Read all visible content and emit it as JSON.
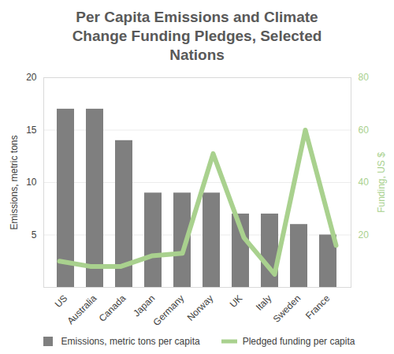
{
  "chart_data": {
    "type": "bar",
    "title": "Per Capita Emissions and Climate Change Funding Pledges, Selected Nations",
    "categories": [
      "US",
      "Australia",
      "Canada",
      "Japan",
      "Germany",
      "Norway",
      "UK",
      "Italy",
      "Sweden",
      "France"
    ],
    "series": [
      {
        "name": "Emissions, metric tons per capita",
        "type": "bar",
        "color": "#7f7f7f",
        "values": [
          17,
          17,
          14,
          9,
          9,
          9,
          7,
          7,
          6,
          5
        ]
      },
      {
        "name": "Pledged funding per capita",
        "type": "line",
        "color": "#a9d18e",
        "axis": "y2",
        "values": [
          10,
          8,
          8,
          12,
          13,
          51,
          19,
          5,
          60,
          16
        ]
      }
    ],
    "ylabel": "Emissions, metric tons",
    "y2label": "Funding, US $",
    "ylim": [
      0,
      20
    ],
    "yticks": [
      5,
      10,
      15,
      20
    ],
    "y2lim": [
      0,
      80
    ],
    "y2ticks": [
      20,
      40,
      60,
      80
    ],
    "grid": true,
    "legend": "bottom"
  }
}
